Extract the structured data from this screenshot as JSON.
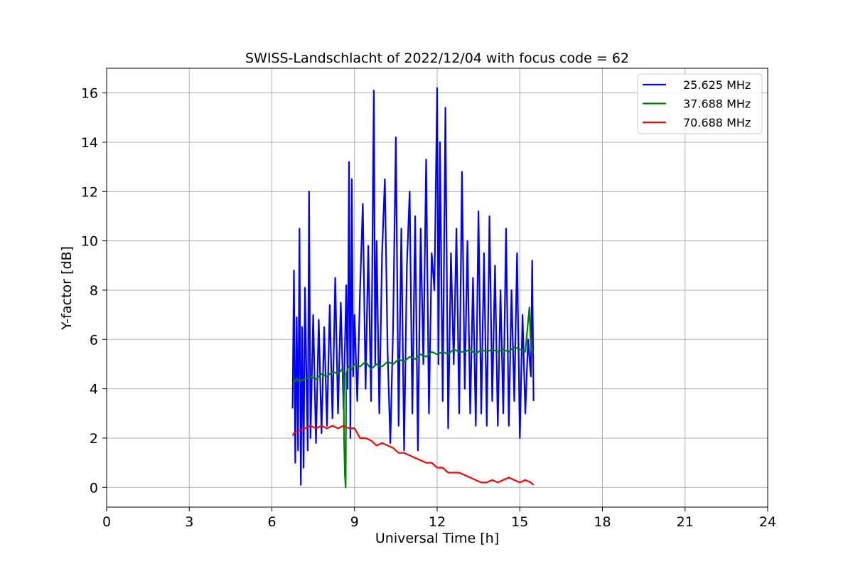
{
  "chart_data": {
    "type": "line",
    "title": "SWISS-Landschlacht of 2022/12/04 with focus code = 62",
    "xlabel": "Universal Time [h]",
    "ylabel": "Y-factor [dB]",
    "xlim": [
      0,
      24
    ],
    "ylim": [
      -0.8,
      17
    ],
    "xticks": [
      0,
      3,
      6,
      9,
      12,
      15,
      18,
      21,
      24
    ],
    "yticks": [
      0,
      2,
      4,
      6,
      8,
      10,
      12,
      14,
      16
    ],
    "grid": true,
    "legend_position": "top-right",
    "series": [
      {
        "name": "25.625 MHz",
        "color": "#0000ff",
        "x": [
          6.75,
          6.8,
          6.85,
          6.9,
          6.95,
          7.0,
          7.05,
          7.1,
          7.15,
          7.2,
          7.3,
          7.35,
          7.4,
          7.5,
          7.6,
          7.7,
          7.8,
          7.9,
          8.0,
          8.1,
          8.2,
          8.3,
          8.4,
          8.5,
          8.6,
          8.7,
          8.75,
          8.8,
          8.85,
          8.9,
          8.95,
          9.0,
          9.1,
          9.2,
          9.3,
          9.4,
          9.5,
          9.6,
          9.7,
          9.75,
          9.8,
          9.9,
          10.0,
          10.1,
          10.2,
          10.3,
          10.4,
          10.5,
          10.6,
          10.7,
          10.8,
          10.9,
          11.0,
          11.1,
          11.2,
          11.3,
          11.4,
          11.5,
          11.6,
          11.7,
          11.8,
          11.9,
          12.0,
          12.05,
          12.1,
          12.2,
          12.3,
          12.4,
          12.5,
          12.6,
          12.7,
          12.8,
          12.9,
          13.0,
          13.1,
          13.2,
          13.3,
          13.4,
          13.5,
          13.6,
          13.7,
          13.8,
          13.9,
          14.0,
          14.1,
          14.2,
          14.3,
          14.4,
          14.5,
          14.6,
          14.7,
          14.8,
          14.9,
          15.0,
          15.1,
          15.2,
          15.3,
          15.4,
          15.45,
          15.5
        ],
        "values": [
          3.2,
          8.8,
          1.0,
          6.9,
          1.5,
          10.5,
          0.1,
          6.5,
          0.8,
          8.1,
          1.5,
          12.0,
          2.0,
          7.0,
          1.8,
          6.8,
          2.2,
          6.5,
          2.5,
          7.4,
          2.8,
          8.5,
          3.0,
          7.5,
          3.2,
          8.2,
          4.0,
          13.2,
          2.0,
          12.5,
          4.5,
          7.0,
          3.5,
          8.0,
          11.5,
          4.0,
          9.8,
          3.5,
          16.1,
          5.0,
          10.0,
          3.0,
          9.5,
          12.5,
          5.5,
          1.8,
          6.5,
          14.2,
          2.5,
          10.5,
          1.5,
          9.0,
          12.0,
          3.0,
          11.0,
          1.5,
          10.5,
          5.0,
          13.3,
          3.0,
          9.5,
          8.0,
          16.2,
          5.0,
          14.0,
          3.5,
          15.4,
          2.4,
          9.5,
          5.0,
          10.5,
          3.0,
          12.8,
          4.0,
          10.0,
          3.0,
          8.5,
          2.5,
          11.2,
          3.0,
          9.5,
          2.5,
          11.0,
          3.5,
          9.0,
          2.5,
          8.0,
          3.0,
          10.5,
          2.5,
          8.0,
          3.5,
          9.5,
          2.0,
          7.0,
          3.0,
          6.0,
          4.5,
          9.2,
          3.5
        ]
      },
      {
        "name": "37.688 MHz",
        "color": "#008000",
        "x": [
          6.75,
          6.9,
          7.0,
          7.2,
          7.4,
          7.6,
          7.8,
          8.0,
          8.2,
          8.4,
          8.55,
          8.6,
          8.62,
          8.65,
          8.68,
          8.7,
          8.72,
          8.75,
          8.8,
          8.9,
          9.0,
          9.2,
          9.4,
          9.6,
          9.8,
          10.0,
          10.2,
          10.4,
          10.6,
          10.8,
          11.0,
          11.2,
          11.4,
          11.6,
          11.8,
          12.0,
          12.2,
          12.4,
          12.6,
          12.8,
          13.0,
          13.2,
          13.4,
          13.6,
          13.8,
          14.0,
          14.2,
          14.4,
          14.6,
          14.8,
          15.0,
          15.2,
          15.35,
          15.4,
          15.45,
          15.5
        ],
        "values": [
          4.2,
          4.4,
          4.3,
          4.4,
          4.5,
          4.4,
          4.6,
          4.5,
          4.7,
          4.6,
          4.8,
          4.5,
          2.0,
          0.5,
          0.0,
          4.6,
          4.7,
          4.8,
          4.9,
          4.8,
          5.0,
          4.9,
          5.1,
          4.8,
          5.0,
          4.9,
          5.1,
          5.0,
          5.2,
          5.1,
          5.3,
          5.2,
          5.4,
          5.3,
          5.5,
          5.4,
          5.5,
          5.4,
          5.6,
          5.5,
          5.5,
          5.6,
          5.4,
          5.6,
          5.5,
          5.6,
          5.5,
          5.6,
          5.5,
          5.7,
          5.6,
          5.5,
          7.3,
          5.6,
          5.5,
          5.5
        ]
      },
      {
        "name": "70.688 MHz",
        "color": "#ff0000",
        "x": [
          6.75,
          6.8,
          7.0,
          7.2,
          7.4,
          7.6,
          7.8,
          8.0,
          8.2,
          8.4,
          8.6,
          8.8,
          9.0,
          9.2,
          9.4,
          9.6,
          9.8,
          10.0,
          10.2,
          10.4,
          10.6,
          10.8,
          11.0,
          11.2,
          11.4,
          11.6,
          11.8,
          12.0,
          12.2,
          12.4,
          12.6,
          12.8,
          13.0,
          13.2,
          13.4,
          13.6,
          13.8,
          14.0,
          14.2,
          14.4,
          14.6,
          14.8,
          15.0,
          15.2,
          15.4,
          15.5
        ],
        "values": [
          2.1,
          2.2,
          2.3,
          2.4,
          2.5,
          2.4,
          2.5,
          2.4,
          2.5,
          2.4,
          2.5,
          2.4,
          2.4,
          2.0,
          2.0,
          1.9,
          1.7,
          1.8,
          1.7,
          1.6,
          1.4,
          1.4,
          1.3,
          1.2,
          1.1,
          1.0,
          1.0,
          0.8,
          0.8,
          0.6,
          0.6,
          0.6,
          0.5,
          0.4,
          0.3,
          0.2,
          0.2,
          0.3,
          0.2,
          0.3,
          0.4,
          0.3,
          0.2,
          0.3,
          0.2,
          0.1
        ]
      }
    ]
  }
}
